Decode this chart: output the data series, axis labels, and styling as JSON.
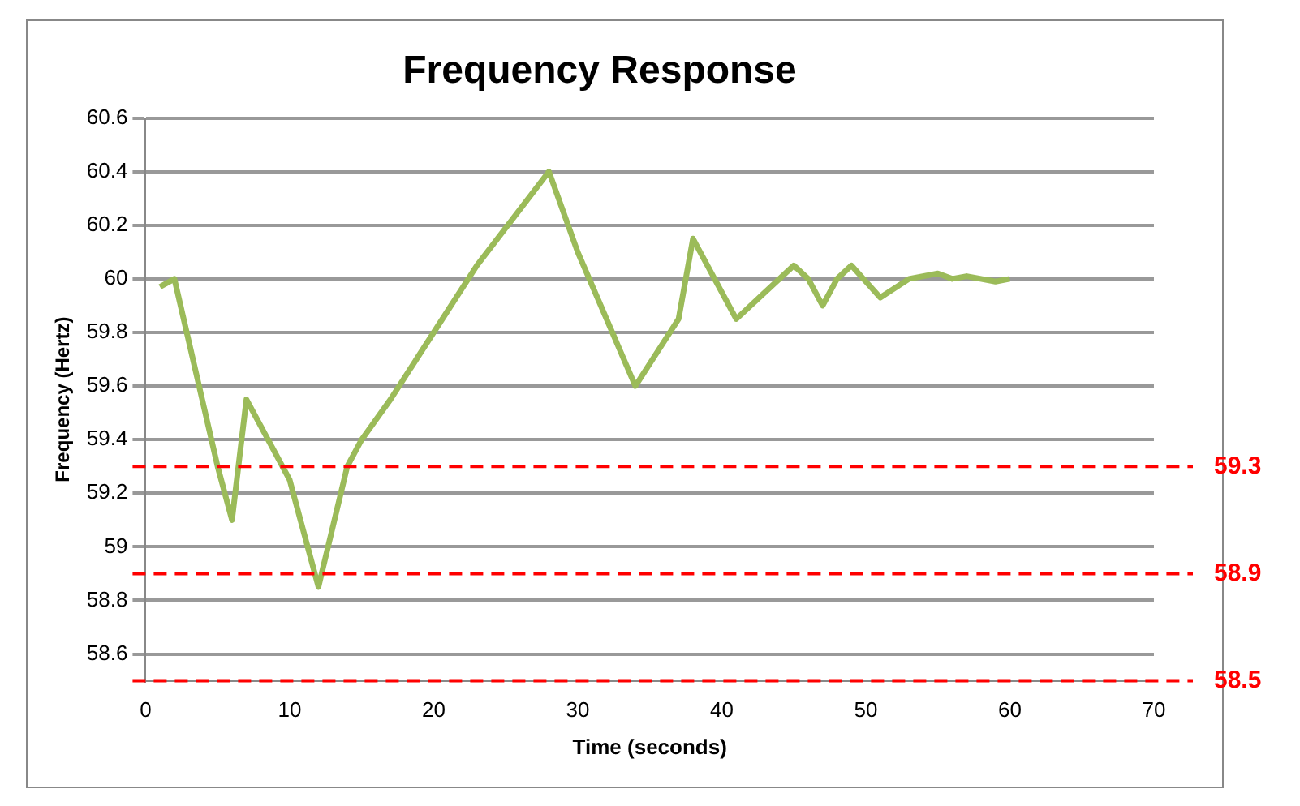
{
  "chart_data": {
    "type": "line",
    "title": "Frequency Response",
    "xlabel": "Time (seconds)",
    "ylabel": "Frequency (Hertz)",
    "x": [
      1,
      2,
      5,
      6,
      7,
      9,
      10,
      12,
      14,
      15,
      17,
      20,
      23,
      28,
      30,
      34,
      37,
      38,
      41,
      43,
      45,
      46,
      47,
      48,
      49,
      51,
      53,
      55,
      56,
      57,
      59,
      60
    ],
    "series": [
      {
        "color": "#9bbb59",
        "values": [
          59.97,
          60.0,
          59.3,
          59.1,
          59.55,
          59.35,
          59.25,
          58.85,
          59.3,
          59.4,
          59.55,
          59.8,
          60.05,
          60.4,
          60.1,
          59.6,
          59.85,
          60.15,
          59.85,
          59.95,
          60.05,
          60.0,
          59.9,
          60.0,
          60.05,
          59.93,
          60.0,
          60.02,
          60.0,
          60.01,
          59.99,
          60.0
        ]
      }
    ],
    "xlim": [
      0,
      70
    ],
    "xticks": [
      0,
      10,
      20,
      30,
      40,
      50,
      60,
      70
    ],
    "ylim": [
      58.5,
      60.6
    ],
    "yticks": [
      58.6,
      58.8,
      59,
      59.2,
      59.4,
      59.6,
      59.8,
      60,
      60.2,
      60.4,
      60.6
    ],
    "ref_lines": [
      {
        "axis": "y",
        "value": 59.3,
        "label": "59.3",
        "color": "#ff0000",
        "line_style": "dashed"
      },
      {
        "axis": "y",
        "value": 58.9,
        "label": "58.9",
        "color": "#ff0000",
        "line_style": "dashed"
      },
      {
        "axis": "y",
        "value": 58.5,
        "label": "58.5",
        "color": "#ff0000",
        "line_style": "dashed"
      }
    ],
    "grid": "y",
    "legend": false,
    "marker": "none",
    "line_style": "solid"
  }
}
